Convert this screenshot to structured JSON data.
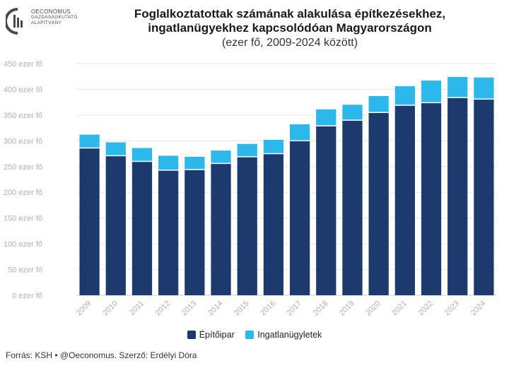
{
  "logo": {
    "lines": [
      "OECONOMUS",
      "GAZDASÁGKUTATÓ",
      "ALAPÍTVÁNY"
    ]
  },
  "source": "Forrás: KSH • @Oeconomus. Szerző: Erdélyi Dóra",
  "chart_data": {
    "type": "bar",
    "stacked": true,
    "title": "Foglalkoztatottak számának alakulása építkezésekhez, ingatlanügyekhez kapcsolódóan Magyarországon",
    "subtitle": "(ezer fő, 2009-2024 között)",
    "categories": [
      "2009",
      "2010",
      "2011",
      "2012",
      "2013",
      "2014",
      "2015",
      "2016",
      "2017",
      "2018",
      "2019",
      "2020",
      "2021",
      "2022",
      "2023",
      "2024"
    ],
    "series": [
      {
        "name": "Építőipar",
        "color": "#1c3a6e",
        "values": [
          285,
          270,
          259,
          242,
          243,
          255,
          268,
          274,
          299,
          328,
          339,
          354,
          368,
          373,
          383,
          380
        ]
      },
      {
        "name": "Ingatlanügyletek",
        "color": "#2db8ec",
        "values": [
          27,
          27,
          27,
          29,
          26,
          26,
          26,
          28,
          33,
          33,
          31,
          33,
          38,
          44,
          41,
          43
        ]
      }
    ],
    "ylim": [
      0,
      450
    ],
    "yticks": [
      0,
      50,
      100,
      150,
      200,
      250,
      300,
      350,
      400,
      450
    ],
    "ytick_labels": [
      "0 ezer fő",
      "50 ezer fő",
      "100 ezer fő",
      "150 ezer fő",
      "200 ezer fő",
      "250 ezer fő",
      "300 ezer fő",
      "350 ezer fő",
      "400 ezer fő",
      "450 ezer fő"
    ],
    "grid": true,
    "legend_position": "bottom"
  }
}
